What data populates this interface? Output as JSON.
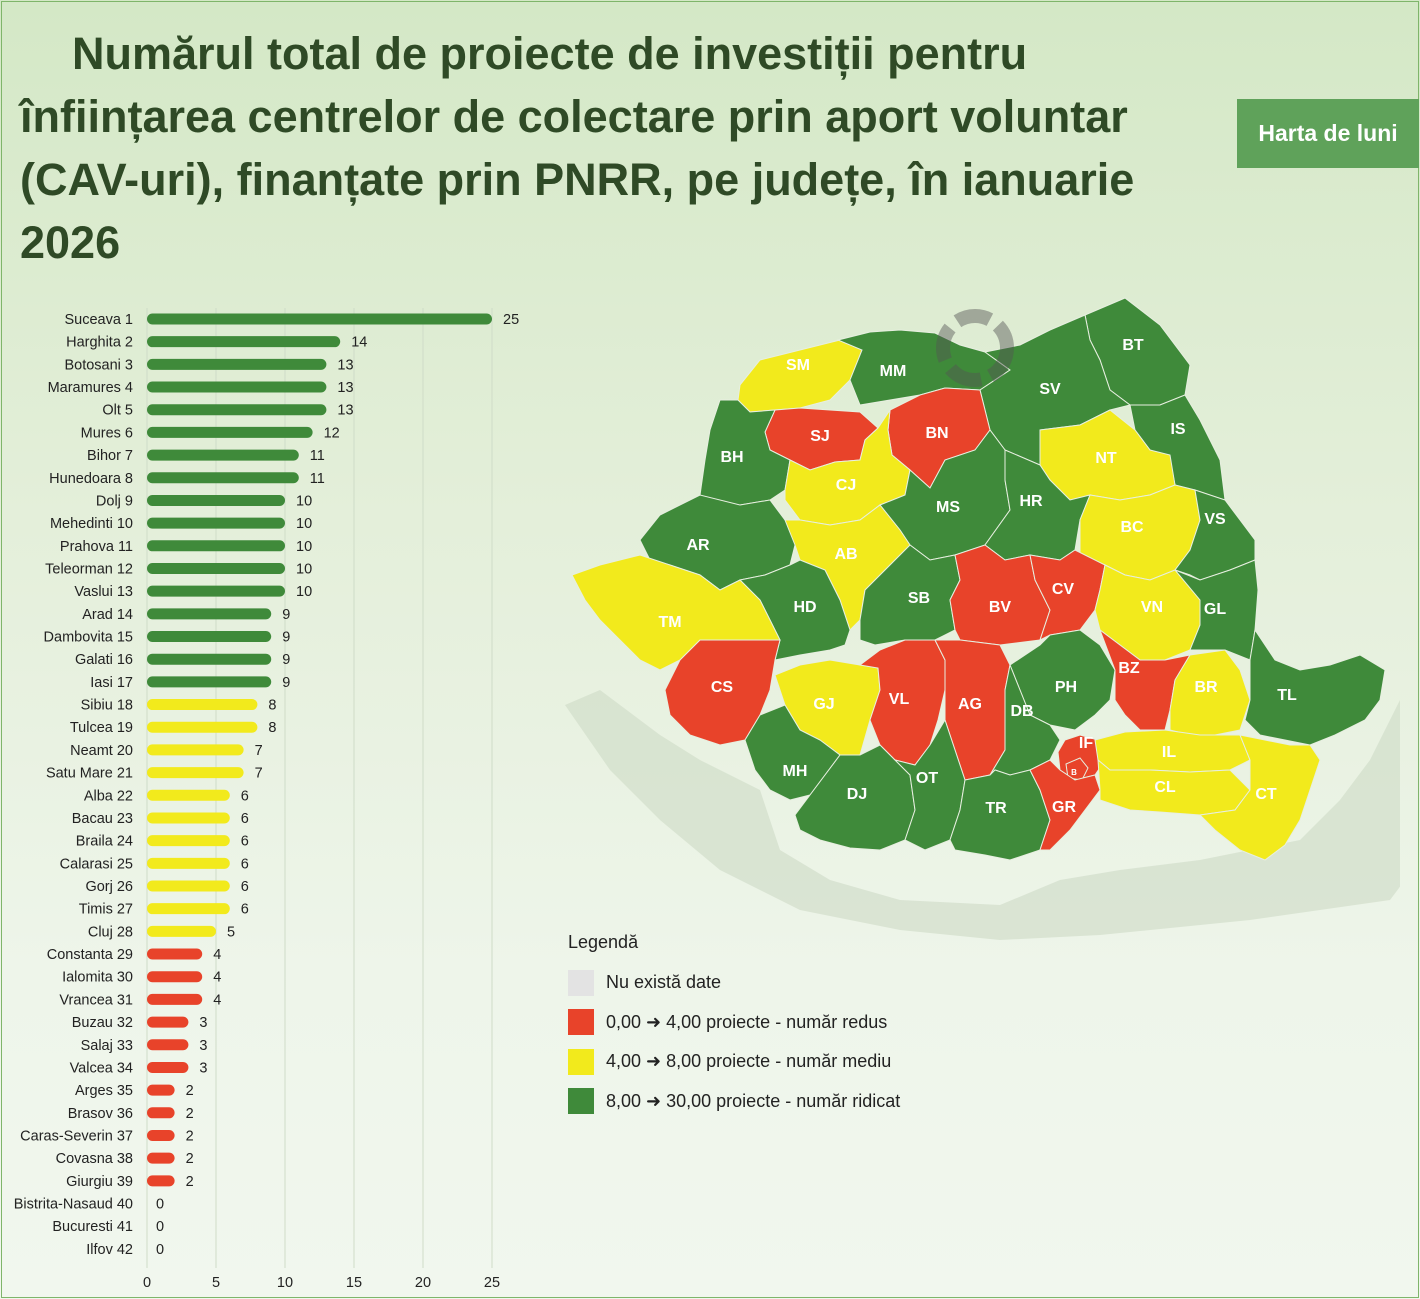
{
  "header": {
    "title": "Numărul total de proiecte de investiții pentru înființarea centrelor de colectare prin aport voluntar (CAV-uri), finanțate prin PNRR, pe județe, în ianuarie 2026",
    "badge_label": "Harta de luni"
  },
  "colors": {
    "high": "#3f8a3a",
    "medium": "#f2ea1c",
    "low": "#e8432a",
    "nodata": "#e3e3e3",
    "label": "#222222",
    "map_outline": "#cfdcc8"
  },
  "chart_data": {
    "type": "bar",
    "orientation": "horizontal",
    "categories": [
      "Suceava 1",
      "Harghita 2",
      "Botosani 3",
      "Maramures 4",
      "Olt 5",
      "Mures 6",
      "Bihor 7",
      "Hunedoara 8",
      "Dolj 9",
      "Mehedinti 10",
      "Prahova 11",
      "Teleorman 12",
      "Vaslui 13",
      "Arad 14",
      "Dambovita 15",
      "Galati 16",
      "Iasi 17",
      "Sibiu 18",
      "Tulcea 19",
      "Neamt 20",
      "Satu Mare 21",
      "Alba 22",
      "Bacau 23",
      "Braila 24",
      "Calarasi 25",
      "Gorj 26",
      "Timis 27",
      "Cluj 28",
      "Constanta 29",
      "Ialomita 30",
      "Vrancea 31",
      "Buzau 32",
      "Salaj 33",
      "Valcea 34",
      "Arges 35",
      "Brasov 36",
      "Caras-Severin 37",
      "Covasna 38",
      "Giurgiu 39",
      "Bistrita-Nasaud 40",
      "Bucuresti 41",
      "Ilfov 42"
    ],
    "values": [
      25,
      14,
      13,
      13,
      13,
      12,
      11,
      11,
      10,
      10,
      10,
      10,
      10,
      9,
      9,
      9,
      9,
      8,
      8,
      7,
      7,
      6,
      6,
      6,
      6,
      6,
      6,
      5,
      4,
      4,
      4,
      3,
      3,
      3,
      2,
      2,
      2,
      2,
      2,
      0,
      0,
      0
    ],
    "xlim": [
      0,
      25
    ],
    "xticks": [
      0,
      5,
      10,
      15,
      20,
      25
    ],
    "legend": {
      "title": "Legendă",
      "entries": [
        {
          "label": "Nu există date",
          "color": "#e3e3e3"
        },
        {
          "label": "0,00 ➜ 4,00 proiecte - număr redus",
          "color": "#e8432a"
        },
        {
          "label": "4,00 ➜ 8,00 proiecte - număr mediu",
          "color": "#f2ea1c"
        },
        {
          "label": "8,00 ➜ 30,00 proiecte - număr ridicat",
          "color": "#3f8a3a"
        }
      ]
    }
  },
  "map": {
    "counties": [
      {
        "code": "SM",
        "cls": "medium"
      },
      {
        "code": "MM",
        "cls": "high"
      },
      {
        "code": "BT",
        "cls": "high"
      },
      {
        "code": "SV",
        "cls": "high"
      },
      {
        "code": "SJ",
        "cls": "low"
      },
      {
        "code": "BN",
        "cls": "low"
      },
      {
        "code": "IS",
        "cls": "high"
      },
      {
        "code": "BH",
        "cls": "high"
      },
      {
        "code": "NT",
        "cls": "medium"
      },
      {
        "code": "CJ",
        "cls": "medium"
      },
      {
        "code": "MS",
        "cls": "high"
      },
      {
        "code": "HR",
        "cls": "high"
      },
      {
        "code": "BC",
        "cls": "medium"
      },
      {
        "code": "VS",
        "cls": "high"
      },
      {
        "code": "AR",
        "cls": "high"
      },
      {
        "code": "AB",
        "cls": "medium"
      },
      {
        "code": "SB",
        "cls": "high"
      },
      {
        "code": "BV",
        "cls": "low"
      },
      {
        "code": "CV",
        "cls": "low"
      },
      {
        "code": "HD",
        "cls": "high"
      },
      {
        "code": "TM",
        "cls": "medium"
      },
      {
        "code": "VN",
        "cls": "medium"
      },
      {
        "code": "GL",
        "cls": "high"
      },
      {
        "code": "CS",
        "cls": "low"
      },
      {
        "code": "GJ",
        "cls": "medium"
      },
      {
        "code": "VL",
        "cls": "low"
      },
      {
        "code": "AG",
        "cls": "low"
      },
      {
        "code": "PH",
        "cls": "high"
      },
      {
        "code": "BZ",
        "cls": "low"
      },
      {
        "code": "BR",
        "cls": "medium"
      },
      {
        "code": "TL",
        "cls": "high"
      },
      {
        "code": "DB",
        "cls": "high"
      },
      {
        "code": "IF",
        "cls": "low"
      },
      {
        "code": "B",
        "cls": "low"
      },
      {
        "code": "IL",
        "cls": "medium"
      },
      {
        "code": "MH",
        "cls": "high"
      },
      {
        "code": "DJ",
        "cls": "high"
      },
      {
        "code": "OT",
        "cls": "high"
      },
      {
        "code": "TR",
        "cls": "high"
      },
      {
        "code": "GR",
        "cls": "low"
      },
      {
        "code": "CL",
        "cls": "medium"
      },
      {
        "code": "CT",
        "cls": "medium"
      }
    ]
  }
}
